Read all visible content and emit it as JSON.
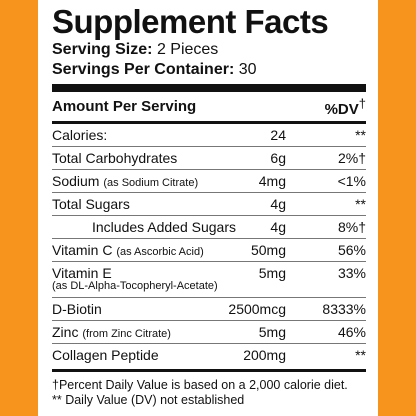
{
  "label": {
    "title": "Supplement Facts",
    "serving_size_label": "Serving Size:",
    "serving_size_value": "2 Pieces",
    "servings_label": "Servings Per Container:",
    "servings_value": "30",
    "amount_header": "Amount Per Serving",
    "dv_header": "%DV",
    "dv_mark": "†"
  },
  "rows": [
    {
      "name": "Calories:",
      "note": "",
      "amount": "24",
      "dv": "**"
    },
    {
      "name": "Total Carbohydrates",
      "note": "",
      "amount": "6g",
      "dv": "2%†"
    },
    {
      "name": "Sodium",
      "note": "(as Sodium Citrate)",
      "amount": "4mg",
      "dv": "<1%"
    },
    {
      "name": "Total Sugars",
      "note": "",
      "amount": "4g",
      "dv": "**"
    },
    {
      "name": "Includes Added Sugars",
      "note": "",
      "amount": "4g",
      "dv": "8%†"
    },
    {
      "name": "Vitamin C",
      "note": "(as Ascorbic Acid)",
      "amount": "50mg",
      "dv": "56%"
    },
    {
      "name": "Vitamin E",
      "note": "(as DL-Alpha-Tocopheryl-Acetate)",
      "amount": "5mg",
      "dv": "33%"
    },
    {
      "name": "D-Biotin",
      "note": "",
      "amount": "2500mcg",
      "dv": "8333%"
    },
    {
      "name": "Zinc",
      "note": "(from Zinc Citrate)",
      "amount": "5mg",
      "dv": "46%"
    },
    {
      "name": "Collagen Peptide",
      "note": "",
      "amount": "200mg",
      "dv": "**"
    }
  ],
  "footnotes": {
    "line1": "†Percent Daily Value is based on a 2,000 calorie diet.",
    "line2": "** Daily Value (DV) not established"
  },
  "colors": {
    "background": "#f7941d",
    "panel": "#ffffff",
    "text": "#111111"
  }
}
